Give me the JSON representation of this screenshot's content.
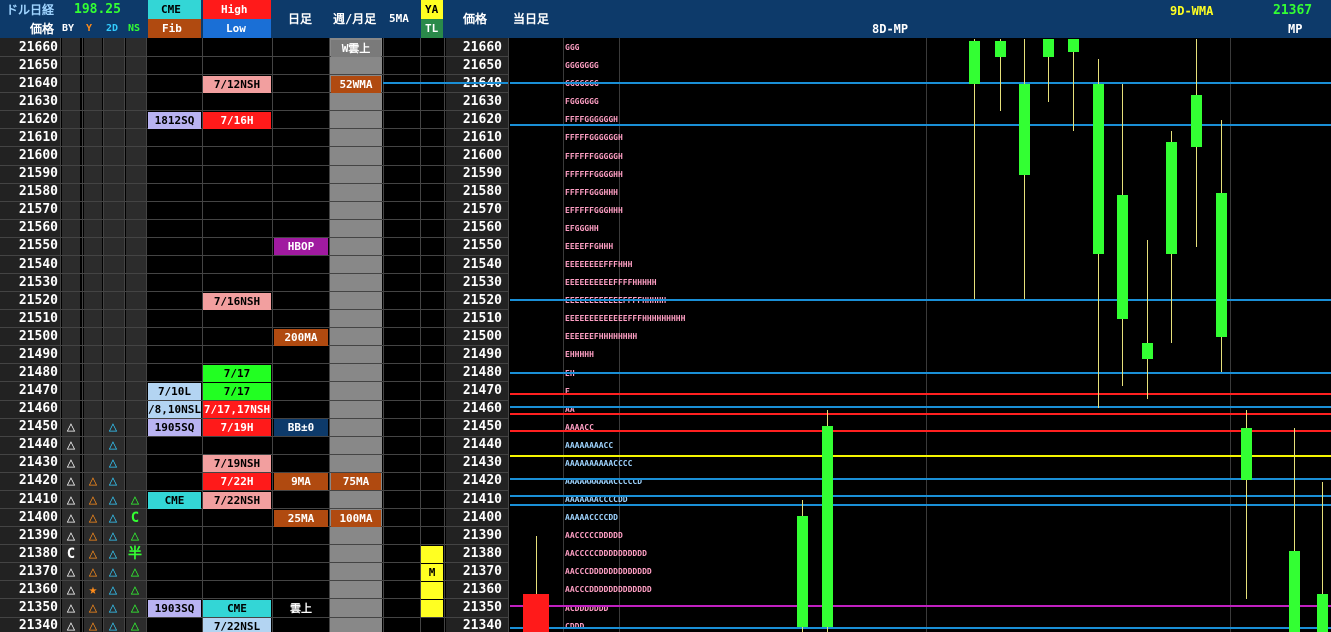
{
  "header": {
    "title": "ドル日経",
    "subtitle": "価格",
    "usdjpy": "198.25",
    "flags": [
      "BY",
      "Y",
      "2D",
      "NS"
    ],
    "cme": "CME",
    "fib": "Fib",
    "high": "High",
    "low": "Low",
    "daily": "日足",
    "weekly_monthly": "週/月足",
    "ma5": "5MA",
    "ya": "YA",
    "tl": "TL",
    "price2": "価格",
    "today": "当日足",
    "wma_label": "9D-WMA",
    "wma_value": "21367",
    "mp8": "8D-MP",
    "mp": "MP"
  },
  "colors": {
    "header_bg": "#0d3a6a",
    "bull": "#33ff33",
    "bear": "#ff1a1a",
    "wick": "#e6e07a",
    "hline_blue": "#1a8fd6",
    "hline_red": "#ff2020",
    "hline_yellow": "#f5f500",
    "hline_magenta": "#c020c0"
  },
  "prices": [
    21660,
    21650,
    21640,
    21630,
    21620,
    21610,
    21600,
    21590,
    21580,
    21570,
    21560,
    21550,
    21540,
    21530,
    21520,
    21510,
    21500,
    21490,
    21480,
    21470,
    21460,
    21450,
    21440,
    21430,
    21420,
    21410,
    21400,
    21390,
    21380,
    21370,
    21360,
    21350,
    21340
  ],
  "symbols": [
    {
      "p": 21450,
      "col": 0,
      "ch": "△",
      "c": "#ffffff"
    },
    {
      "p": 21440,
      "col": 0,
      "ch": "△",
      "c": "#ffffff"
    },
    {
      "p": 21430,
      "col": 0,
      "ch": "△",
      "c": "#ffffff"
    },
    {
      "p": 21420,
      "col": 0,
      "ch": "△",
      "c": "#ffffff"
    },
    {
      "p": 21410,
      "col": 0,
      "ch": "△",
      "c": "#ffffff"
    },
    {
      "p": 21400,
      "col": 0,
      "ch": "△",
      "c": "#ffffff"
    },
    {
      "p": 21390,
      "col": 0,
      "ch": "△",
      "c": "#ffffff"
    },
    {
      "p": 21380,
      "col": 0,
      "ch": "C",
      "c": "#ffffff"
    },
    {
      "p": 21370,
      "col": 0,
      "ch": "△",
      "c": "#ffffff"
    },
    {
      "p": 21360,
      "col": 0,
      "ch": "△",
      "c": "#ffffff"
    },
    {
      "p": 21350,
      "col": 0,
      "ch": "△",
      "c": "#ffffff"
    },
    {
      "p": 21340,
      "col": 0,
      "ch": "△",
      "c": "#ffffff"
    },
    {
      "p": 21420,
      "col": 1,
      "ch": "△",
      "c": "#ff8c1a"
    },
    {
      "p": 21410,
      "col": 1,
      "ch": "△",
      "c": "#ff8c1a"
    },
    {
      "p": 21400,
      "col": 1,
      "ch": "△",
      "c": "#ff8c1a"
    },
    {
      "p": 21390,
      "col": 1,
      "ch": "△",
      "c": "#ff8c1a"
    },
    {
      "p": 21380,
      "col": 1,
      "ch": "△",
      "c": "#ff8c1a"
    },
    {
      "p": 21370,
      "col": 1,
      "ch": "△",
      "c": "#ff8c1a"
    },
    {
      "p": 21360,
      "col": 1,
      "ch": "★",
      "c": "#ff8c1a"
    },
    {
      "p": 21350,
      "col": 1,
      "ch": "△",
      "c": "#ff8c1a"
    },
    {
      "p": 21340,
      "col": 1,
      "ch": "△",
      "c": "#ff8c1a"
    },
    {
      "p": 21450,
      "col": 2,
      "ch": "△",
      "c": "#33ccff"
    },
    {
      "p": 21440,
      "col": 2,
      "ch": "△",
      "c": "#33ccff"
    },
    {
      "p": 21430,
      "col": 2,
      "ch": "△",
      "c": "#33ccff"
    },
    {
      "p": 21420,
      "col": 2,
      "ch": "△",
      "c": "#33ccff"
    },
    {
      "p": 21410,
      "col": 2,
      "ch": "△",
      "c": "#33ccff"
    },
    {
      "p": 21400,
      "col": 2,
      "ch": "△",
      "c": "#33ccff"
    },
    {
      "p": 21390,
      "col": 2,
      "ch": "△",
      "c": "#33ccff"
    },
    {
      "p": 21380,
      "col": 2,
      "ch": "△",
      "c": "#33ccff"
    },
    {
      "p": 21370,
      "col": 2,
      "ch": "△",
      "c": "#33ccff"
    },
    {
      "p": 21360,
      "col": 2,
      "ch": "△",
      "c": "#33ccff"
    },
    {
      "p": 21350,
      "col": 2,
      "ch": "△",
      "c": "#33ccff"
    },
    {
      "p": 21340,
      "col": 2,
      "ch": "△",
      "c": "#33ccff"
    },
    {
      "p": 21410,
      "col": 3,
      "ch": "△",
      "c": "#33ff33"
    },
    {
      "p": 21400,
      "col": 3,
      "ch": "C",
      "c": "#33ff33"
    },
    {
      "p": 21390,
      "col": 3,
      "ch": "△",
      "c": "#33ff33"
    },
    {
      "p": 21380,
      "col": 3,
      "ch": "半",
      "c": "#33ff33"
    },
    {
      "p": 21370,
      "col": 3,
      "ch": "△",
      "c": "#33ff33"
    },
    {
      "p": 21360,
      "col": 3,
      "ch": "△",
      "c": "#33ff33"
    },
    {
      "p": 21350,
      "col": 3,
      "ch": "△",
      "c": "#33ff33"
    },
    {
      "p": 21340,
      "col": 3,
      "ch": "△",
      "c": "#33ff33"
    }
  ],
  "cme_fib": [
    {
      "p": 21620,
      "text": "1812SQ",
      "bg": "#b9b3f2",
      "fg": "#000"
    },
    {
      "p": 21470,
      "text": "7/10L",
      "bg": "#b3d4f2",
      "fg": "#000"
    },
    {
      "p": 21460,
      "text": "/8,10NSL",
      "bg": "#b3d4f2",
      "fg": "#000"
    },
    {
      "p": 21450,
      "text": "1905SQ",
      "bg": "#b9b3f2",
      "fg": "#000"
    },
    {
      "p": 21410,
      "text": "CME",
      "bg": "#33d6d6",
      "fg": "#000"
    },
    {
      "p": 21350,
      "text": "1903SQ",
      "bg": "#b9b3f2",
      "fg": "#000"
    }
  ],
  "high_low": [
    {
      "p": 21640,
      "text": "7/12NSH",
      "bg": "#f29f9f",
      "fg": "#000"
    },
    {
      "p": 21620,
      "text": "7/16H",
      "bg": "#ff1a1a",
      "fg": "#fff"
    },
    {
      "p": 21520,
      "text": "7/16NSH",
      "bg": "#f29f9f",
      "fg": "#000"
    },
    {
      "p": 21480,
      "text": "7/17",
      "bg": "#22ff22",
      "fg": "#000"
    },
    {
      "p": 21470,
      "text": "7/17",
      "bg": "#22ff22",
      "fg": "#000"
    },
    {
      "p": 21460,
      "text": "7/17,17NSH",
      "bg": "#ff1a1a",
      "fg": "#fff"
    },
    {
      "p": 21450,
      "text": "7/19H",
      "bg": "#ff1a1a",
      "fg": "#fff"
    },
    {
      "p": 21430,
      "text": "7/19NSH",
      "bg": "#f29f9f",
      "fg": "#000"
    },
    {
      "p": 21420,
      "text": "7/22H",
      "bg": "#ff1a1a",
      "fg": "#fff"
    },
    {
      "p": 21410,
      "text": "7/22NSH",
      "bg": "#f29f9f",
      "fg": "#000"
    },
    {
      "p": 21350,
      "text": "CME",
      "bg": "#33d6d6",
      "fg": "#000"
    },
    {
      "p": 21340,
      "text": "7/22NSL",
      "bg": "#b3d4f2",
      "fg": "#000"
    }
  ],
  "daily": [
    {
      "p": 21550,
      "text": "HBOP",
      "bg": "#a01aa0",
      "fg": "#fff"
    },
    {
      "p": 21500,
      "text": "200MA",
      "bg": "#b04a10",
      "fg": "#fff"
    },
    {
      "p": 21450,
      "text": "BB±0",
      "bg": "#0d3a6a",
      "fg": "#fff"
    },
    {
      "p": 21420,
      "text": "9MA",
      "bg": "#b04a10",
      "fg": "#fff"
    },
    {
      "p": 21400,
      "text": "25MA",
      "bg": "#b04a10",
      "fg": "#fff"
    },
    {
      "p": 21350,
      "text": "雲上",
      "bg": "#000",
      "fg": "#fff"
    }
  ],
  "weekly": [
    {
      "p": 21660,
      "text": "W雲上",
      "bg": "#7a7a7a",
      "fg": "#fff"
    },
    {
      "p": 21640,
      "text": "52WMA",
      "bg": "#b04a10",
      "fg": "#fff"
    },
    {
      "p": 21420,
      "text": "75MA",
      "bg": "#b04a10",
      "fg": "#fff"
    },
    {
      "p": 21400,
      "text": "100MA",
      "bg": "#b04a10",
      "fg": "#fff"
    }
  ],
  "ya_tl": [
    {
      "p": 21380,
      "text": "",
      "bg": "#ffff22",
      "fg": "#000"
    },
    {
      "p": 21370,
      "text": "M",
      "bg": "#ffff22",
      "fg": "#000"
    },
    {
      "p": 21360,
      "text": "",
      "bg": "#ffff22",
      "fg": "#000"
    },
    {
      "p": 21350,
      "text": "",
      "bg": "#ffff22",
      "fg": "#000"
    }
  ],
  "tpo_profile": [
    {
      "p": 21660,
      "s": "GGG"
    },
    {
      "p": 21650,
      "s": "GGGGGGG"
    },
    {
      "p": 21640,
      "s": "GGGGGGG"
    },
    {
      "p": 21630,
      "s": "FGGGGGG"
    },
    {
      "p": 21620,
      "s": "FFFFGGGGGGH"
    },
    {
      "p": 21610,
      "s": "FFFFFGGGGGGH"
    },
    {
      "p": 21600,
      "s": "FFFFFFGGGGGH"
    },
    {
      "p": 21590,
      "s": "FFFFFFGGGGHH"
    },
    {
      "p": 21580,
      "s": "FFFFFGGGHHH"
    },
    {
      "p": 21570,
      "s": "EFFFFFGGGHHH"
    },
    {
      "p": 21560,
      "s": "EFGGGHH"
    },
    {
      "p": 21550,
      "s": "EEEEFFGHHH"
    },
    {
      "p": 21540,
      "s": "EEEEEEEEFFFHHH"
    },
    {
      "p": 21530,
      "s": "EEEEEEEEEEFFFFHHHHH"
    },
    {
      "p": 21520,
      "s": "EEEEEEEEEEEEFFFFHHHHH"
    },
    {
      "p": 21510,
      "s": "EEEEEEEEEEEEEFFFHHHHHHHHH"
    },
    {
      "p": 21500,
      "s": "EEEEEEFHHHHHHHH"
    },
    {
      "p": 21490,
      "s": "EHHHHH"
    },
    {
      "p": 21480,
      "s": "EH"
    },
    {
      "p": 21470,
      "s": "E"
    },
    {
      "p": 21460,
      "s": "AA"
    },
    {
      "p": 21450,
      "s": "AAAACC"
    },
    {
      "p": 21440,
      "s": "AAAAAAAACC"
    },
    {
      "p": 21430,
      "s": "AAAAAAAAAACCCC"
    },
    {
      "p": 21420,
      "s": "AAAAAAAAAACCCCCD"
    },
    {
      "p": 21410,
      "s": "AAAAAAACCCCDD"
    },
    {
      "p": 21400,
      "s": "AAAAACCCCDD"
    },
    {
      "p": 21390,
      "s": "AACCCCCDDDDD"
    },
    {
      "p": 21380,
      "s": "AACCCCCDDDDDDDDDD"
    },
    {
      "p": 21370,
      "s": "AACCCDDDDDDDDDDDDD"
    },
    {
      "p": 21360,
      "s": "AACCCDDDDDDDDDDDDD"
    },
    {
      "p": 21350,
      "s": "ACDDDDDDD"
    },
    {
      "p": 21340,
      "s": "CDDD"
    }
  ],
  "hlines": [
    {
      "p": 21641,
      "c": "#1a8fd6"
    },
    {
      "p": 21618,
      "c": "#1a8fd6"
    },
    {
      "p": 21521,
      "c": "#1a8fd6"
    },
    {
      "p": 21481,
      "c": "#1a8fd6"
    },
    {
      "p": 21469,
      "c": "#ff2020"
    },
    {
      "p": 21462,
      "c": "#1a8fd6"
    },
    {
      "p": 21458,
      "c": "#ff2020"
    },
    {
      "p": 21449,
      "c": "#ff2020"
    },
    {
      "p": 21435,
      "c": "#f5f500"
    },
    {
      "p": 21422,
      "c": "#1a8fd6"
    },
    {
      "p": 21413,
      "c": "#1a8fd6"
    },
    {
      "p": 21408,
      "c": "#1a8fd6"
    },
    {
      "p": 21352,
      "c": "#c020c0"
    },
    {
      "p": 21340,
      "c": "#1a8fd6"
    }
  ],
  "chart_data": {
    "type": "candlestick",
    "ylim": [
      21335,
      21665
    ],
    "candles": [
      {
        "x": 536,
        "o": 21358,
        "c": 21340,
        "h": 21390,
        "l": 21335
      },
      {
        "x": 802,
        "o": 21340,
        "c": 21401,
        "h": 21410,
        "l": 21335
      },
      {
        "x": 827,
        "o": 21340,
        "c": 21451,
        "h": 21460,
        "l": 21335
      },
      {
        "x": 974,
        "o": 21640,
        "c": 21664,
        "h": 21665,
        "l": 21521
      },
      {
        "x": 1000,
        "o": 21655,
        "c": 21664,
        "h": 21665,
        "l": 21625
      },
      {
        "x": 1024,
        "o": 21590,
        "c": 21640,
        "h": 21665,
        "l": 21521
      },
      {
        "x": 1048,
        "o": 21655,
        "c": 21665,
        "h": 21665,
        "l": 21630
      },
      {
        "x": 1073,
        "o": 21658,
        "c": 21665,
        "h": 21665,
        "l": 21614
      },
      {
        "x": 1098,
        "o": 21546,
        "c": 21640,
        "h": 21654,
        "l": 21461
      },
      {
        "x": 1122,
        "o": 21510,
        "c": 21579,
        "h": 21640,
        "l": 21473
      },
      {
        "x": 1147,
        "o": 21488,
        "c": 21497,
        "h": 21554,
        "l": 21466
      },
      {
        "x": 1171,
        "o": 21546,
        "c": 21608,
        "h": 21614,
        "l": 21497
      },
      {
        "x": 1196,
        "o": 21605,
        "c": 21634,
        "h": 21665,
        "l": 21550
      },
      {
        "x": 1221,
        "o": 21500,
        "c": 21580,
        "h": 21620,
        "l": 21481
      },
      {
        "x": 1246,
        "o": 21421,
        "c": 21450,
        "h": 21460,
        "l": 21355
      },
      {
        "x": 1294,
        "o": 21335,
        "c": 21382,
        "h": 21450,
        "l": 21335
      },
      {
        "x": 1322,
        "o": 21335,
        "c": 21358,
        "h": 21420,
        "l": 21335
      }
    ]
  }
}
